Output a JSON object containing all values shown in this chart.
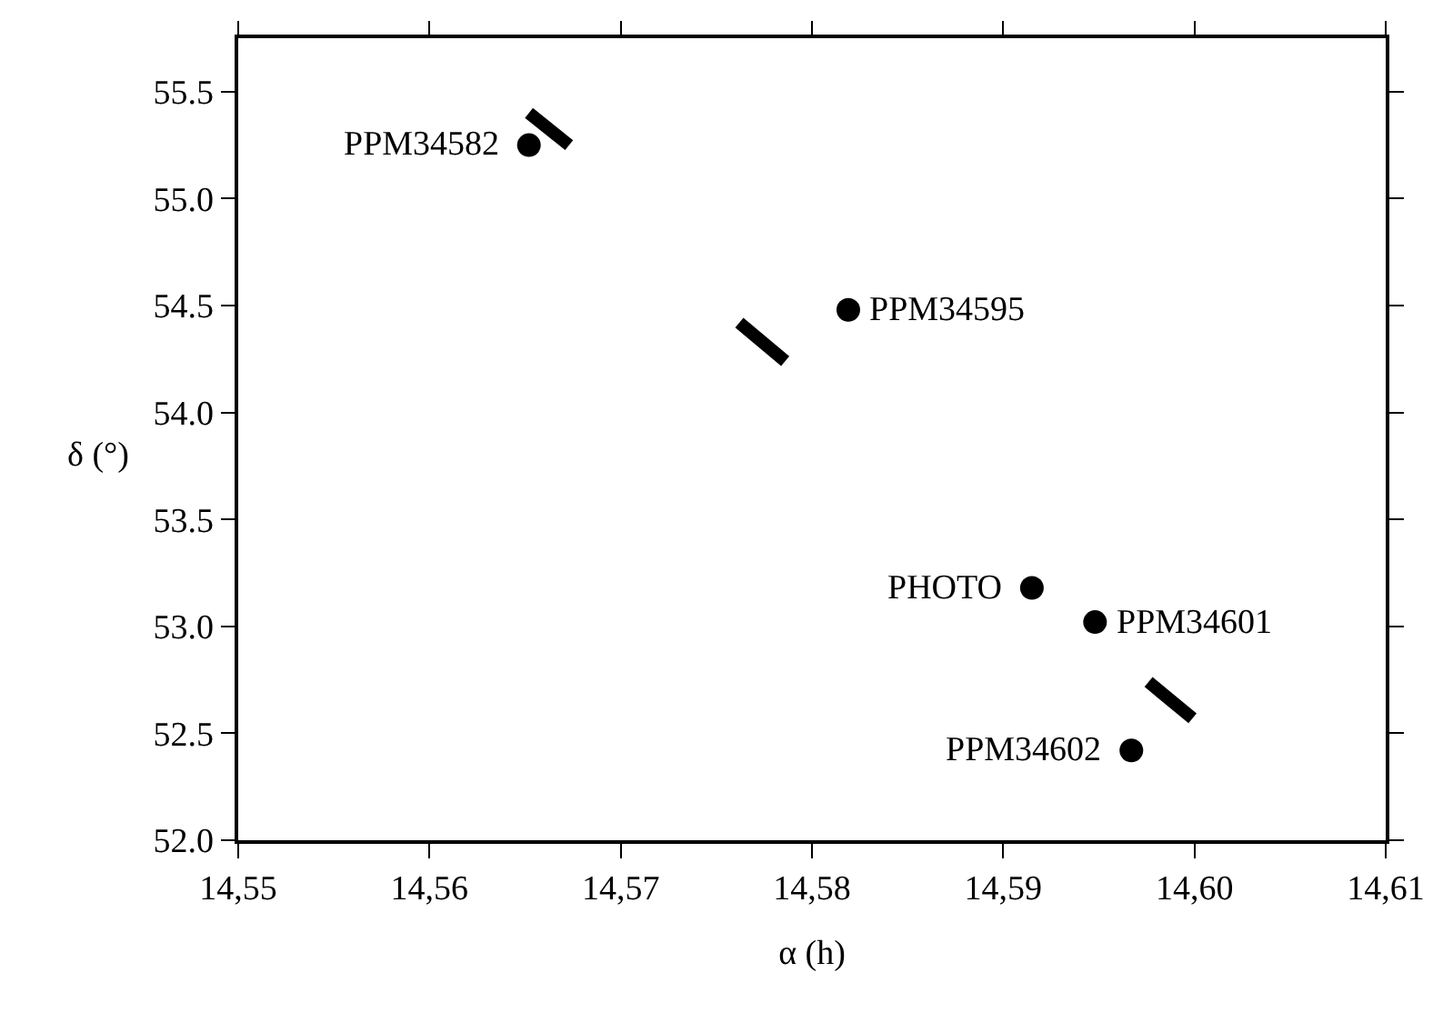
{
  "chart_data": {
    "type": "scatter",
    "xlabel": "α (h)",
    "ylabel": "δ (°)",
    "xlim": [
      14.55,
      14.61
    ],
    "xticks": [
      {
        "value": 14.55,
        "label": "14,55"
      },
      {
        "value": 14.56,
        "label": "14,56"
      },
      {
        "value": 14.57,
        "label": "14,57"
      },
      {
        "value": 14.58,
        "label": "14,58"
      },
      {
        "value": 14.59,
        "label": "14,59"
      },
      {
        "value": 14.6,
        "label": "14,60"
      },
      {
        "value": 14.61,
        "label": "14,61"
      }
    ],
    "ylim": [
      52.0,
      55.75
    ],
    "yticks": [
      {
        "value": 52,
        "label": "52.0"
      },
      {
        "value": 52.5,
        "label": "52.5"
      },
      {
        "value": 53,
        "label": "53.0"
      },
      {
        "value": 53.5,
        "label": "53.5"
      },
      {
        "value": 54,
        "label": "54.0"
      },
      {
        "value": 54.5,
        "label": "54.5"
      },
      {
        "value": 55,
        "label": "55.0"
      },
      {
        "value": 55.5,
        "label": "55.5"
      }
    ],
    "line_style": "solid",
    "series": [
      {
        "marker": "circle",
        "color": "#000000",
        "x": [
          14.5652,
          14.5819,
          14.5915,
          14.5948,
          14.5967
        ],
        "values": [
          55.25,
          54.48,
          53.18,
          53.02,
          52.42
        ]
      },
      {
        "type": "line",
        "marker": "none",
        "color": "#000000",
        "x": [
          14.5652,
          14.5673
        ],
        "values": [
          55.4,
          55.25
        ]
      },
      {
        "type": "line",
        "marker": "none",
        "color": "#000000",
        "x": [
          14.5762,
          14.5786
        ],
        "values": [
          54.42,
          54.24
        ]
      },
      {
        "type": "line",
        "marker": "none",
        "color": "#000000",
        "x": [
          14.5976,
          14.5999
        ],
        "values": [
          52.74,
          52.57
        ]
      }
    ],
    "annotations": [
      {
        "text": "PPM34582",
        "x": 14.5652,
        "y": 55.25
      },
      {
        "text": "PPM34595",
        "x": 14.5819,
        "y": 54.48
      },
      {
        "text": "PHOTO",
        "x": 14.5915,
        "y": 53.18
      },
      {
        "text": "PPM34601",
        "x": 14.5948,
        "y": 53.02
      },
      {
        "text": "PPM34602",
        "x": 14.5967,
        "y": 52.42
      }
    ]
  }
}
